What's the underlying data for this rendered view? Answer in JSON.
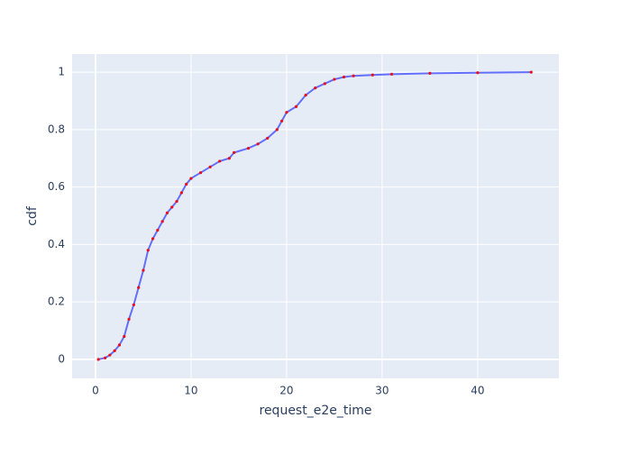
{
  "chart_data": {
    "type": "line",
    "x_label": "request_e2e_time",
    "y_label": "cdf",
    "x": [
      0.3,
      1,
      1.5,
      2,
      2.5,
      3,
      3.5,
      4,
      4.5,
      5,
      5.5,
      6,
      6.5,
      7,
      7.5,
      8,
      8.5,
      9,
      9.5,
      10,
      11,
      12,
      13,
      14,
      14.5,
      16,
      17,
      18,
      19,
      19.5,
      20,
      21,
      22,
      23,
      24,
      25,
      26,
      27,
      29,
      31,
      35,
      40,
      45.6
    ],
    "series": [
      {
        "color": "#636efa",
        "marker_color": "#e8101c",
        "values": [
          0,
          0.005,
          0.015,
          0.03,
          0.05,
          0.08,
          0.14,
          0.19,
          0.25,
          0.31,
          0.38,
          0.42,
          0.45,
          0.48,
          0.51,
          0.53,
          0.55,
          0.58,
          0.61,
          0.63,
          0.65,
          0.67,
          0.69,
          0.7,
          0.72,
          0.735,
          0.75,
          0.77,
          0.8,
          0.83,
          0.86,
          0.88,
          0.92,
          0.945,
          0.96,
          0.975,
          0.983,
          0.987,
          0.99,
          0.993,
          0.996,
          0.998,
          1
        ]
      }
    ],
    "xlim": [
      -2.45,
      48.5
    ],
    "ylim": [
      -0.066,
      1.063
    ],
    "xticks": [
      0,
      10,
      20,
      30,
      40
    ],
    "yticks": [
      0,
      0.2,
      0.4,
      0.6,
      0.8,
      1
    ],
    "grid": true
  }
}
